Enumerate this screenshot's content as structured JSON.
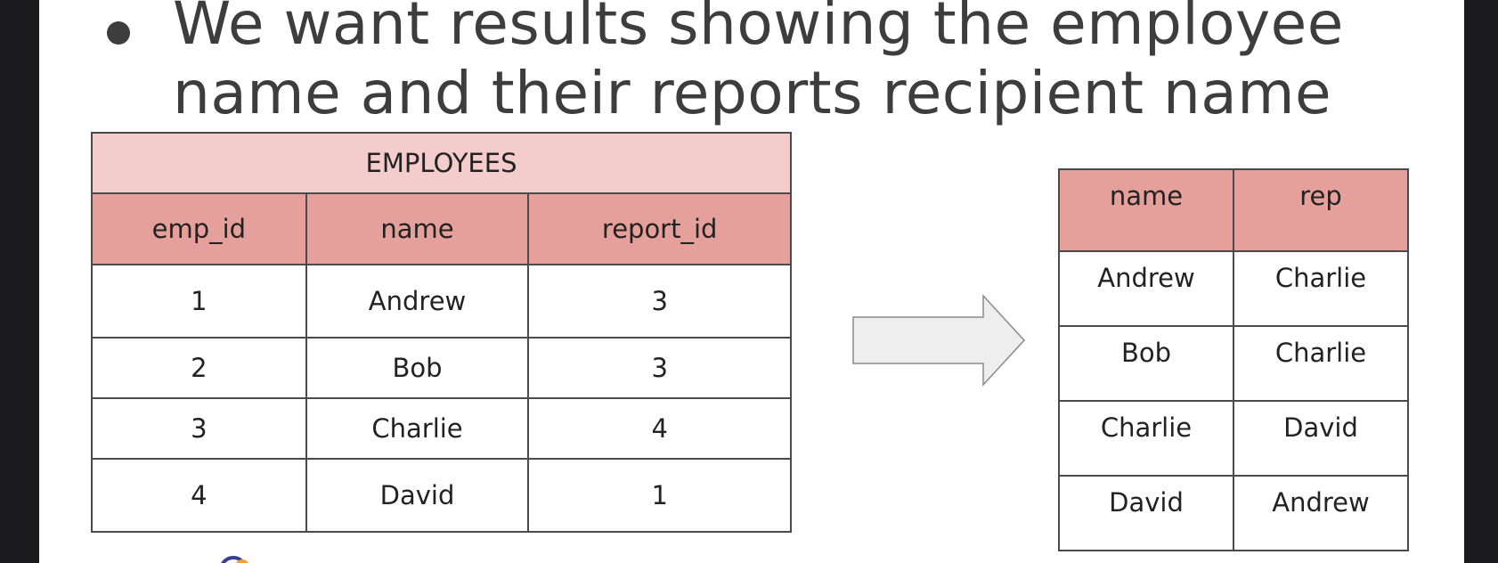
{
  "headline": "We want results showing the employee name and their reports recipient name",
  "employees_table": {
    "caption": "EMPLOYEES",
    "columns": [
      "emp_id",
      "name",
      "report_id"
    ],
    "rows": [
      [
        "1",
        "Andrew",
        "3"
      ],
      [
        "2",
        "Bob",
        "3"
      ],
      [
        "3",
        "Charlie",
        "4"
      ],
      [
        "4",
        "David",
        "1"
      ]
    ]
  },
  "result_table": {
    "columns": [
      "name",
      "rep"
    ],
    "rows": [
      [
        "Andrew",
        "Charlie"
      ],
      [
        "Bob",
        "Charlie"
      ],
      [
        "Charlie",
        "David"
      ],
      [
        "David",
        "Andrew"
      ]
    ]
  },
  "colors": {
    "header_fill": "#e6a09b",
    "caption_fill": "#f4cccc",
    "arrow_fill": "#eeeeee",
    "text": "#3d3d3d"
  },
  "icons": {
    "arrow": "right-arrow-icon",
    "bullet": "bullet-dot-icon",
    "logo": "logo-icon"
  }
}
